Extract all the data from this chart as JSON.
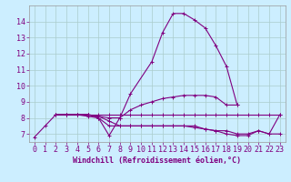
{
  "x": [
    0,
    1,
    2,
    3,
    4,
    5,
    6,
    7,
    8,
    9,
    10,
    11,
    12,
    13,
    14,
    15,
    16,
    17,
    18,
    19,
    20,
    21,
    22,
    23
  ],
  "curve1": [
    6.8,
    7.5,
    8.2,
    8.2,
    8.2,
    8.2,
    8.0,
    6.9,
    8.0,
    9.5,
    null,
    11.5,
    13.3,
    14.5,
    14.5,
    14.1,
    13.6,
    12.5,
    11.2,
    8.8,
    null,
    null,
    null,
    null
  ],
  "curve2": [
    null,
    null,
    8.2,
    8.2,
    8.2,
    8.2,
    8.1,
    7.8,
    7.5,
    7.5,
    7.5,
    7.5,
    7.5,
    7.5,
    7.5,
    7.4,
    7.3,
    7.2,
    7.2,
    7.0,
    7.0,
    7.2,
    7.0,
    8.2
  ],
  "curve3": [
    null,
    null,
    8.2,
    8.2,
    8.2,
    8.1,
    8.0,
    7.5,
    7.5,
    7.5,
    7.5,
    7.5,
    7.5,
    7.5,
    7.5,
    7.5,
    7.3,
    7.2,
    7.0,
    6.9,
    6.9,
    7.2,
    7.0,
    7.0
  ],
  "curve4": [
    null,
    null,
    8.2,
    8.2,
    8.2,
    8.2,
    8.2,
    8.2,
    8.2,
    8.2,
    8.2,
    8.2,
    8.2,
    8.2,
    8.2,
    8.2,
    8.2,
    8.2,
    8.2,
    8.2,
    8.2,
    8.2,
    8.2,
    8.2
  ],
  "curve5": [
    null,
    null,
    8.2,
    8.2,
    8.2,
    8.2,
    8.1,
    8.0,
    8.0,
    8.5,
    8.8,
    9.0,
    9.2,
    9.3,
    9.4,
    9.4,
    9.4,
    9.3,
    8.8,
    8.8,
    null,
    null,
    null,
    null
  ],
  "color": "#800080",
  "bg_color": "#cceeff",
  "grid_color": "#aacccc",
  "title": "Windchill (Refroidissement éolien,°C)",
  "ylim": [
    6.5,
    15.0
  ],
  "yticks": [
    7,
    8,
    9,
    10,
    11,
    12,
    13,
    14
  ],
  "xlabel_fontsize": 6,
  "tick_fontsize": 6,
  "marker": "+",
  "linewidth": 0.8,
  "markersize": 2.5
}
